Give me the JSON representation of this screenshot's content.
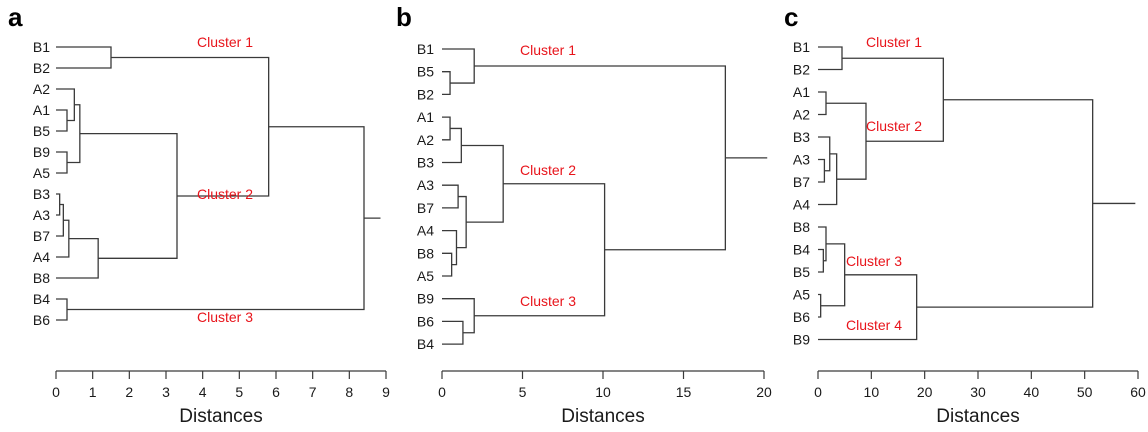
{
  "chart_data": [
    {
      "type": "dendrogram",
      "panel_label": "a",
      "xlabel": "Distances",
      "xlim": [
        0,
        9
      ],
      "ticks": [
        0,
        1,
        2,
        3,
        4,
        5,
        6,
        7,
        8,
        9
      ],
      "leaves": [
        "B1",
        "B2",
        "A2",
        "A1",
        "B5",
        "B9",
        "A5",
        "B3",
        "A3",
        "B7",
        "A4",
        "B8",
        "B4",
        "B6"
      ],
      "merges": [
        [
          0,
          1,
          1.5
        ],
        [
          3,
          4,
          0.3
        ],
        [
          2,
          15,
          0.5
        ],
        [
          5,
          6,
          0.3
        ],
        [
          16,
          17,
          0.65
        ],
        [
          7,
          8,
          0.1
        ],
        [
          19,
          9,
          0.2
        ],
        [
          20,
          10,
          0.35
        ],
        [
          21,
          11,
          1.15
        ],
        [
          18,
          22,
          3.3
        ],
        [
          14,
          23,
          5.8
        ],
        [
          12,
          13,
          0.3
        ],
        [
          24,
          25,
          8.4
        ]
      ],
      "root_stub": 8.85,
      "clusters": [
        {
          "name": "Cluster 1",
          "at_x": 5.8,
          "pos": "top"
        },
        {
          "name": "Cluster 2",
          "at_x": 5.8,
          "pos": "bottom"
        },
        {
          "name": "Cluster 3",
          "at_x": 5.8,
          "pos": "top2"
        }
      ]
    },
    {
      "type": "dendrogram",
      "panel_label": "b",
      "xlabel": "Distances",
      "xlim": [
        0,
        20
      ],
      "ticks": [
        0,
        5,
        10,
        15,
        20
      ],
      "leaves": [
        "B1",
        "B5",
        "B2",
        "A1",
        "A2",
        "B3",
        "A3",
        "B7",
        "A4",
        "B8",
        "A5",
        "B9",
        "B6",
        "B4"
      ],
      "merges": [
        [
          1,
          2,
          0.5
        ],
        [
          0,
          14,
          2.0
        ],
        [
          3,
          4,
          0.5
        ],
        [
          16,
          5,
          1.2
        ],
        [
          9,
          10,
          0.6
        ],
        [
          8,
          18,
          0.9
        ],
        [
          6,
          7,
          1.0
        ],
        [
          20,
          19,
          1.5
        ],
        [
          17,
          21,
          3.8
        ],
        [
          12,
          13,
          1.3
        ],
        [
          11,
          23,
          2.0
        ],
        [
          22,
          24,
          10.1
        ],
        [
          15,
          25,
          17.6
        ]
      ],
      "root_stub": 20.2,
      "clusters": [
        {
          "name": "Cluster 1",
          "at_x": 10.1,
          "pos": "top"
        },
        {
          "name": "Cluster 2",
          "at_x": 10.1,
          "pos": "top"
        },
        {
          "name": "Cluster 3",
          "at_x": 10.1,
          "pos": "top"
        }
      ]
    },
    {
      "type": "dendrogram",
      "panel_label": "c",
      "xlabel": "Distances",
      "xlim": [
        0,
        60
      ],
      "ticks": [
        0,
        10,
        20,
        30,
        40,
        50,
        60
      ],
      "leaves": [
        "B1",
        "B2",
        "A1",
        "A2",
        "B3",
        "A3",
        "B7",
        "A4",
        "B8",
        "B4",
        "B5",
        "A5",
        "B6",
        "B9"
      ],
      "merges": [
        [
          0,
          1,
          4.5
        ],
        [
          2,
          3,
          1.5
        ],
        [
          5,
          6,
          1.2
        ],
        [
          4,
          16,
          2.2
        ],
        [
          17,
          7,
          3.5
        ],
        [
          15,
          18,
          9.0
        ],
        [
          14,
          19,
          23.5
        ],
        [
          9,
          10,
          1.0
        ],
        [
          8,
          21,
          1.5
        ],
        [
          11,
          12,
          0.5
        ],
        [
          22,
          23,
          5.0
        ],
        [
          24,
          13,
          18.5
        ],
        [
          20,
          25,
          51.5
        ]
      ],
      "root_stub": 59.5,
      "clusters": [
        {
          "name": "Cluster 1",
          "at_x": 23.5,
          "pos": "top"
        },
        {
          "name": "Cluster 2",
          "at_x": 23.5,
          "pos": "top"
        },
        {
          "name": "Cluster 3",
          "at_x": 18.5,
          "pos": "top"
        },
        {
          "name": "Cluster 4",
          "at_x": 18.5,
          "pos": "bottom"
        }
      ]
    }
  ]
}
